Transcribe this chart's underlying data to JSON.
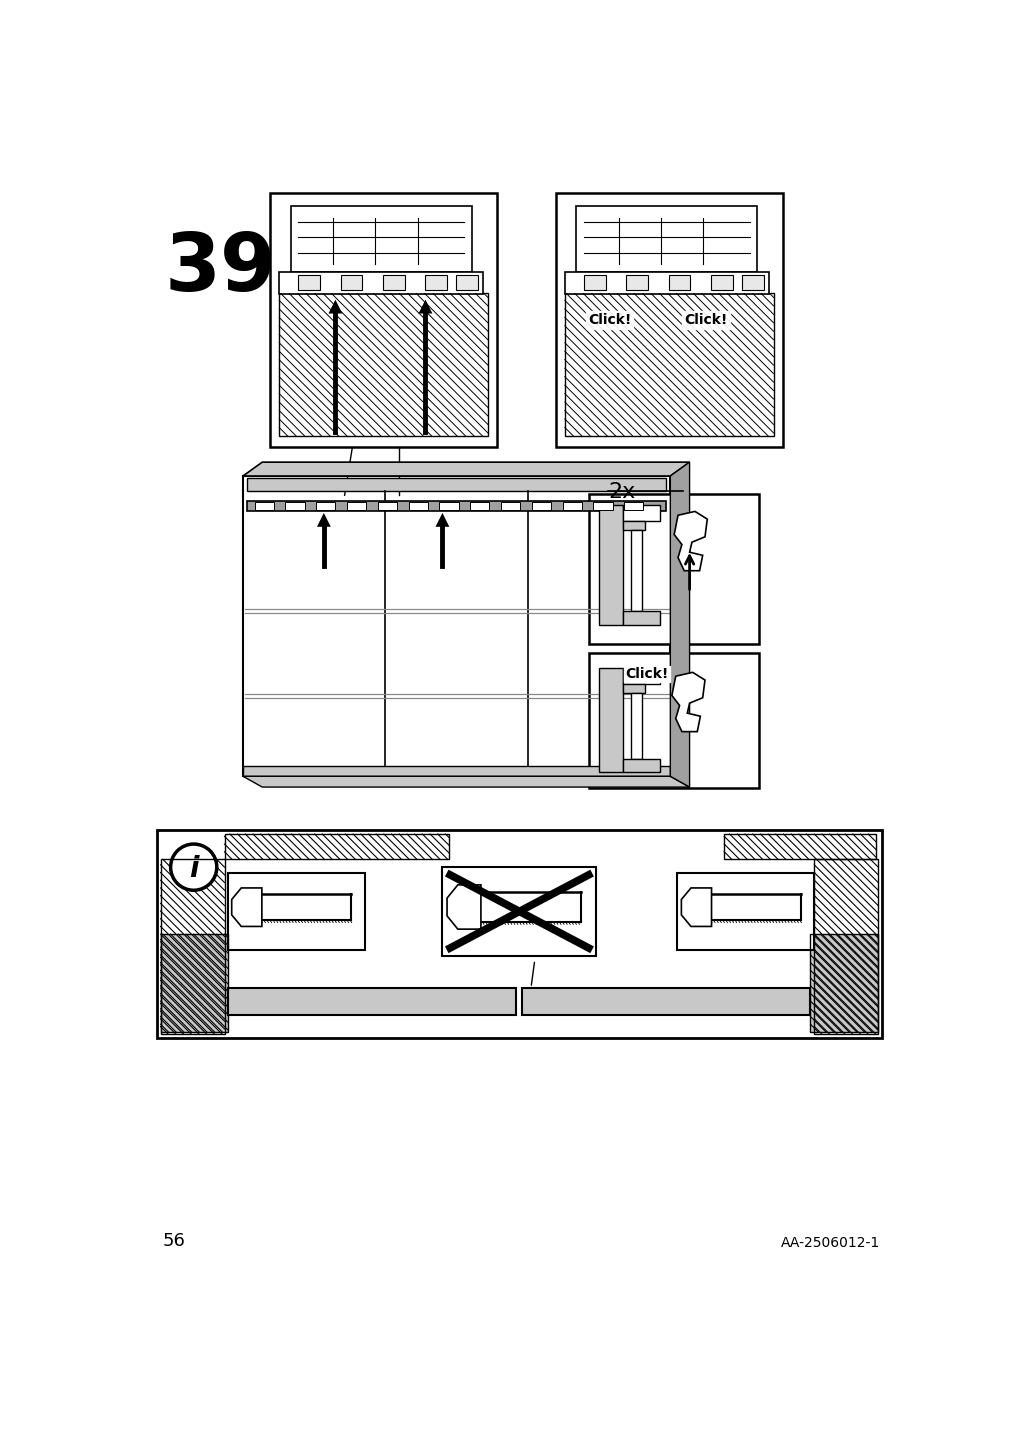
{
  "page_number": "56",
  "doc_ref": "AA-2506012-1",
  "step_number": "39",
  "bg": "#ffffff",
  "lc": "#000000",
  "gray1": "#c8c8c8",
  "gray2": "#a0a0a0",
  "gray3": "#e8e8e8"
}
